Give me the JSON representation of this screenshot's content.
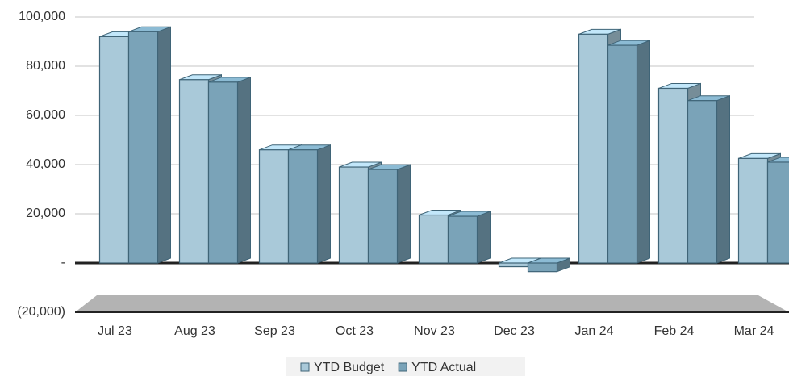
{
  "chart_data": {
    "type": "bar",
    "categories": [
      "Jul 23",
      "Aug 23",
      "Sep 23",
      "Oct 23",
      "Nov 23",
      "Dec 23",
      "Jan 24",
      "Feb 24",
      "Mar 24"
    ],
    "series": [
      {
        "name": "YTD Budget",
        "color": "#a9c9d9",
        "values": [
          92000,
          74500,
          46000,
          39000,
          19500,
          -1500,
          93000,
          71000,
          42500
        ]
      },
      {
        "name": "YTD Actual",
        "color": "#7aa3b8",
        "values": [
          94000,
          73500,
          46000,
          38000,
          19000,
          -3500,
          88500,
          66000,
          41000
        ]
      }
    ],
    "ylim": [
      -20000,
      100000
    ],
    "yticks": [
      {
        "value": -20000,
        "label": "(20,000)"
      },
      {
        "value": 0,
        "label": "-"
      },
      {
        "value": 20000,
        "label": "20,000"
      },
      {
        "value": 40000,
        "label": "40,000"
      },
      {
        "value": 60000,
        "label": "60,000"
      },
      {
        "value": 80000,
        "label": "80,000"
      },
      {
        "value": 100000,
        "label": "100,000"
      }
    ],
    "grid": true,
    "legend": "bottom"
  }
}
